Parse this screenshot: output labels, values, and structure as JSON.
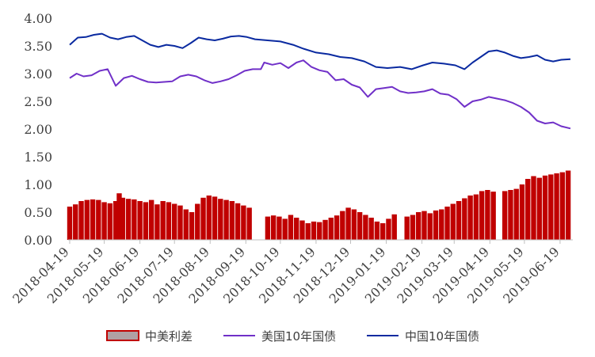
{
  "chart_data": {
    "type": "bar+line",
    "title": "",
    "xlabel": "",
    "ylabel": "",
    "ylim": [
      0,
      4
    ],
    "y_ticks": [
      "0.00",
      "0.50",
      "1.00",
      "1.50",
      "2.00",
      "2.50",
      "3.00",
      "3.50",
      "4.00"
    ],
    "x_range": [
      "2018-04-19",
      "2019-06-28"
    ],
    "x_tick_labels": [
      "2018-04-19",
      "2018-05-19",
      "2018-06-19",
      "2018-07-19",
      "2018-08-19",
      "2018-09-19",
      "2018-10-19",
      "2018-11-19",
      "2018-12-19",
      "2019-01-19",
      "2019-02-19",
      "2019-03-19",
      "2019-04-19",
      "2019-05-19",
      "2019-06-19"
    ],
    "grid": false,
    "legend_position": "bottom",
    "series": [
      {
        "name": "中美利差",
        "kind": "bar",
        "color": "#c00000",
        "points": [
          [
            "2018-04-19",
            0.6
          ],
          [
            "2018-04-24",
            0.64
          ],
          [
            "2018-04-29",
            0.7
          ],
          [
            "2018-05-04",
            0.72
          ],
          [
            "2018-05-09",
            0.73
          ],
          [
            "2018-05-14",
            0.72
          ],
          [
            "2018-05-19",
            0.68
          ],
          [
            "2018-05-24",
            0.66
          ],
          [
            "2018-05-29",
            0.7
          ],
          [
            "2018-06-01",
            0.84
          ],
          [
            "2018-06-04",
            0.76
          ],
          [
            "2018-06-09",
            0.74
          ],
          [
            "2018-06-14",
            0.73
          ],
          [
            "2018-06-19",
            0.7
          ],
          [
            "2018-06-24",
            0.68
          ],
          [
            "2018-06-29",
            0.72
          ],
          [
            "2018-07-04",
            0.64
          ],
          [
            "2018-07-09",
            0.7
          ],
          [
            "2018-07-14",
            0.68
          ],
          [
            "2018-07-19",
            0.65
          ],
          [
            "2018-07-24",
            0.62
          ],
          [
            "2018-07-29",
            0.55
          ],
          [
            "2018-08-03",
            0.5
          ],
          [
            "2018-08-08",
            0.65
          ],
          [
            "2018-08-13",
            0.76
          ],
          [
            "2018-08-18",
            0.8
          ],
          [
            "2018-08-23",
            0.78
          ],
          [
            "2018-08-28",
            0.74
          ],
          [
            "2018-09-02",
            0.72
          ],
          [
            "2018-09-07",
            0.7
          ],
          [
            "2018-09-12",
            0.66
          ],
          [
            "2018-09-17",
            0.62
          ],
          [
            "2018-09-22",
            0.58
          ],
          [
            "2018-10-08",
            0.42
          ],
          [
            "2018-10-13",
            0.44
          ],
          [
            "2018-10-18",
            0.42
          ],
          [
            "2018-10-23",
            0.38
          ],
          [
            "2018-10-28",
            0.45
          ],
          [
            "2018-11-02",
            0.4
          ],
          [
            "2018-11-07",
            0.35
          ],
          [
            "2018-11-12",
            0.3
          ],
          [
            "2018-11-17",
            0.33
          ],
          [
            "2018-11-22",
            0.32
          ],
          [
            "2018-11-27",
            0.36
          ],
          [
            "2018-12-02",
            0.4
          ],
          [
            "2018-12-07",
            0.44
          ],
          [
            "2018-12-12",
            0.52
          ],
          [
            "2018-12-17",
            0.58
          ],
          [
            "2018-12-22",
            0.55
          ],
          [
            "2018-12-27",
            0.5
          ],
          [
            "2019-01-01",
            0.45
          ],
          [
            "2019-01-06",
            0.4
          ],
          [
            "2019-01-11",
            0.33
          ],
          [
            "2019-01-16",
            0.3
          ],
          [
            "2019-01-21",
            0.38
          ],
          [
            "2019-01-26",
            0.46
          ],
          [
            "2019-02-06",
            0.42
          ],
          [
            "2019-02-11",
            0.45
          ],
          [
            "2019-02-16",
            0.5
          ],
          [
            "2019-02-21",
            0.52
          ],
          [
            "2019-02-26",
            0.48
          ],
          [
            "2019-03-03",
            0.53
          ],
          [
            "2019-03-08",
            0.55
          ],
          [
            "2019-03-13",
            0.6
          ],
          [
            "2019-03-18",
            0.65
          ],
          [
            "2019-03-23",
            0.7
          ],
          [
            "2019-03-28",
            0.75
          ],
          [
            "2019-04-02",
            0.8
          ],
          [
            "2019-04-07",
            0.82
          ],
          [
            "2019-04-12",
            0.88
          ],
          [
            "2019-04-17",
            0.9
          ],
          [
            "2019-04-22",
            0.87
          ],
          [
            "2019-05-02",
            0.88
          ],
          [
            "2019-05-07",
            0.9
          ],
          [
            "2019-05-12",
            0.92
          ],
          [
            "2019-05-17",
            1.0
          ],
          [
            "2019-05-22",
            1.1
          ],
          [
            "2019-05-27",
            1.15
          ],
          [
            "2019-06-01",
            1.12
          ],
          [
            "2019-06-06",
            1.16
          ],
          [
            "2019-06-11",
            1.18
          ],
          [
            "2019-06-16",
            1.2
          ],
          [
            "2019-06-21",
            1.22
          ],
          [
            "2019-06-26",
            1.25
          ]
        ]
      },
      {
        "name": "美国10年国债",
        "kind": "line",
        "color": "#7030c8",
        "points": [
          [
            "2018-04-19",
            2.92
          ],
          [
            "2018-04-25",
            3.0
          ],
          [
            "2018-05-01",
            2.95
          ],
          [
            "2018-05-08",
            2.97
          ],
          [
            "2018-05-15",
            3.05
          ],
          [
            "2018-05-22",
            3.08
          ],
          [
            "2018-05-25",
            2.95
          ],
          [
            "2018-05-29",
            2.78
          ],
          [
            "2018-06-05",
            2.92
          ],
          [
            "2018-06-12",
            2.96
          ],
          [
            "2018-06-19",
            2.9
          ],
          [
            "2018-06-26",
            2.85
          ],
          [
            "2018-07-03",
            2.84
          ],
          [
            "2018-07-10",
            2.85
          ],
          [
            "2018-07-17",
            2.86
          ],
          [
            "2018-07-24",
            2.95
          ],
          [
            "2018-07-31",
            2.98
          ],
          [
            "2018-08-07",
            2.95
          ],
          [
            "2018-08-14",
            2.88
          ],
          [
            "2018-08-21",
            2.83
          ],
          [
            "2018-08-28",
            2.86
          ],
          [
            "2018-09-04",
            2.9
          ],
          [
            "2018-09-11",
            2.97
          ],
          [
            "2018-09-18",
            3.05
          ],
          [
            "2018-09-25",
            3.08
          ],
          [
            "2018-10-02",
            3.08
          ],
          [
            "2018-10-05",
            3.2
          ],
          [
            "2018-10-12",
            3.16
          ],
          [
            "2018-10-19",
            3.19
          ],
          [
            "2018-10-26",
            3.1
          ],
          [
            "2018-11-02",
            3.2
          ],
          [
            "2018-11-08",
            3.24
          ],
          [
            "2018-11-15",
            3.12
          ],
          [
            "2018-11-22",
            3.06
          ],
          [
            "2018-11-29",
            3.03
          ],
          [
            "2018-12-06",
            2.88
          ],
          [
            "2018-12-13",
            2.9
          ],
          [
            "2018-12-20",
            2.8
          ],
          [
            "2018-12-27",
            2.75
          ],
          [
            "2019-01-03",
            2.58
          ],
          [
            "2019-01-10",
            2.72
          ],
          [
            "2019-01-17",
            2.74
          ],
          [
            "2019-01-24",
            2.76
          ],
          [
            "2019-01-31",
            2.68
          ],
          [
            "2019-02-07",
            2.65
          ],
          [
            "2019-02-14",
            2.66
          ],
          [
            "2019-02-21",
            2.68
          ],
          [
            "2019-02-28",
            2.72
          ],
          [
            "2019-03-07",
            2.64
          ],
          [
            "2019-03-14",
            2.62
          ],
          [
            "2019-03-21",
            2.54
          ],
          [
            "2019-03-28",
            2.4
          ],
          [
            "2019-04-04",
            2.5
          ],
          [
            "2019-04-11",
            2.53
          ],
          [
            "2019-04-18",
            2.58
          ],
          [
            "2019-04-25",
            2.55
          ],
          [
            "2019-05-02",
            2.52
          ],
          [
            "2019-05-09",
            2.47
          ],
          [
            "2019-05-16",
            2.4
          ],
          [
            "2019-05-23",
            2.3
          ],
          [
            "2019-05-30",
            2.15
          ],
          [
            "2019-06-06",
            2.1
          ],
          [
            "2019-06-13",
            2.12
          ],
          [
            "2019-06-20",
            2.05
          ],
          [
            "2019-06-28",
            2.01
          ]
        ]
      },
      {
        "name": "中国10年国债",
        "kind": "line",
        "color": "#0a2aa0",
        "points": [
          [
            "2018-04-19",
            3.52
          ],
          [
            "2018-04-26",
            3.65
          ],
          [
            "2018-05-03",
            3.66
          ],
          [
            "2018-05-10",
            3.7
          ],
          [
            "2018-05-17",
            3.72
          ],
          [
            "2018-05-24",
            3.65
          ],
          [
            "2018-05-31",
            3.62
          ],
          [
            "2018-06-07",
            3.66
          ],
          [
            "2018-06-14",
            3.68
          ],
          [
            "2018-06-21",
            3.6
          ],
          [
            "2018-06-28",
            3.52
          ],
          [
            "2018-07-05",
            3.48
          ],
          [
            "2018-07-12",
            3.52
          ],
          [
            "2018-07-19",
            3.5
          ],
          [
            "2018-07-26",
            3.46
          ],
          [
            "2018-08-02",
            3.55
          ],
          [
            "2018-08-09",
            3.65
          ],
          [
            "2018-08-16",
            3.62
          ],
          [
            "2018-08-23",
            3.6
          ],
          [
            "2018-08-30",
            3.63
          ],
          [
            "2018-09-06",
            3.67
          ],
          [
            "2018-09-13",
            3.68
          ],
          [
            "2018-09-20",
            3.66
          ],
          [
            "2018-09-27",
            3.62
          ],
          [
            "2018-10-08",
            3.6
          ],
          [
            "2018-10-19",
            3.58
          ],
          [
            "2018-10-30",
            3.52
          ],
          [
            "2018-11-08",
            3.45
          ],
          [
            "2018-11-19",
            3.38
          ],
          [
            "2018-11-30",
            3.35
          ],
          [
            "2018-12-10",
            3.3
          ],
          [
            "2018-12-20",
            3.28
          ],
          [
            "2018-12-31",
            3.22
          ],
          [
            "2019-01-10",
            3.12
          ],
          [
            "2019-01-20",
            3.1
          ],
          [
            "2019-01-31",
            3.12
          ],
          [
            "2019-02-10",
            3.08
          ],
          [
            "2019-02-20",
            3.15
          ],
          [
            "2019-02-28",
            3.2
          ],
          [
            "2019-03-10",
            3.18
          ],
          [
            "2019-03-20",
            3.15
          ],
          [
            "2019-03-28",
            3.08
          ],
          [
            "2019-04-04",
            3.2
          ],
          [
            "2019-04-11",
            3.3
          ],
          [
            "2019-04-18",
            3.4
          ],
          [
            "2019-04-25",
            3.42
          ],
          [
            "2019-05-02",
            3.38
          ],
          [
            "2019-05-09",
            3.32
          ],
          [
            "2019-05-16",
            3.28
          ],
          [
            "2019-05-23",
            3.3
          ],
          [
            "2019-05-30",
            3.33
          ],
          [
            "2019-06-06",
            3.25
          ],
          [
            "2019-06-13",
            3.22
          ],
          [
            "2019-06-20",
            3.25
          ],
          [
            "2019-06-28",
            3.26
          ]
        ]
      }
    ]
  }
}
